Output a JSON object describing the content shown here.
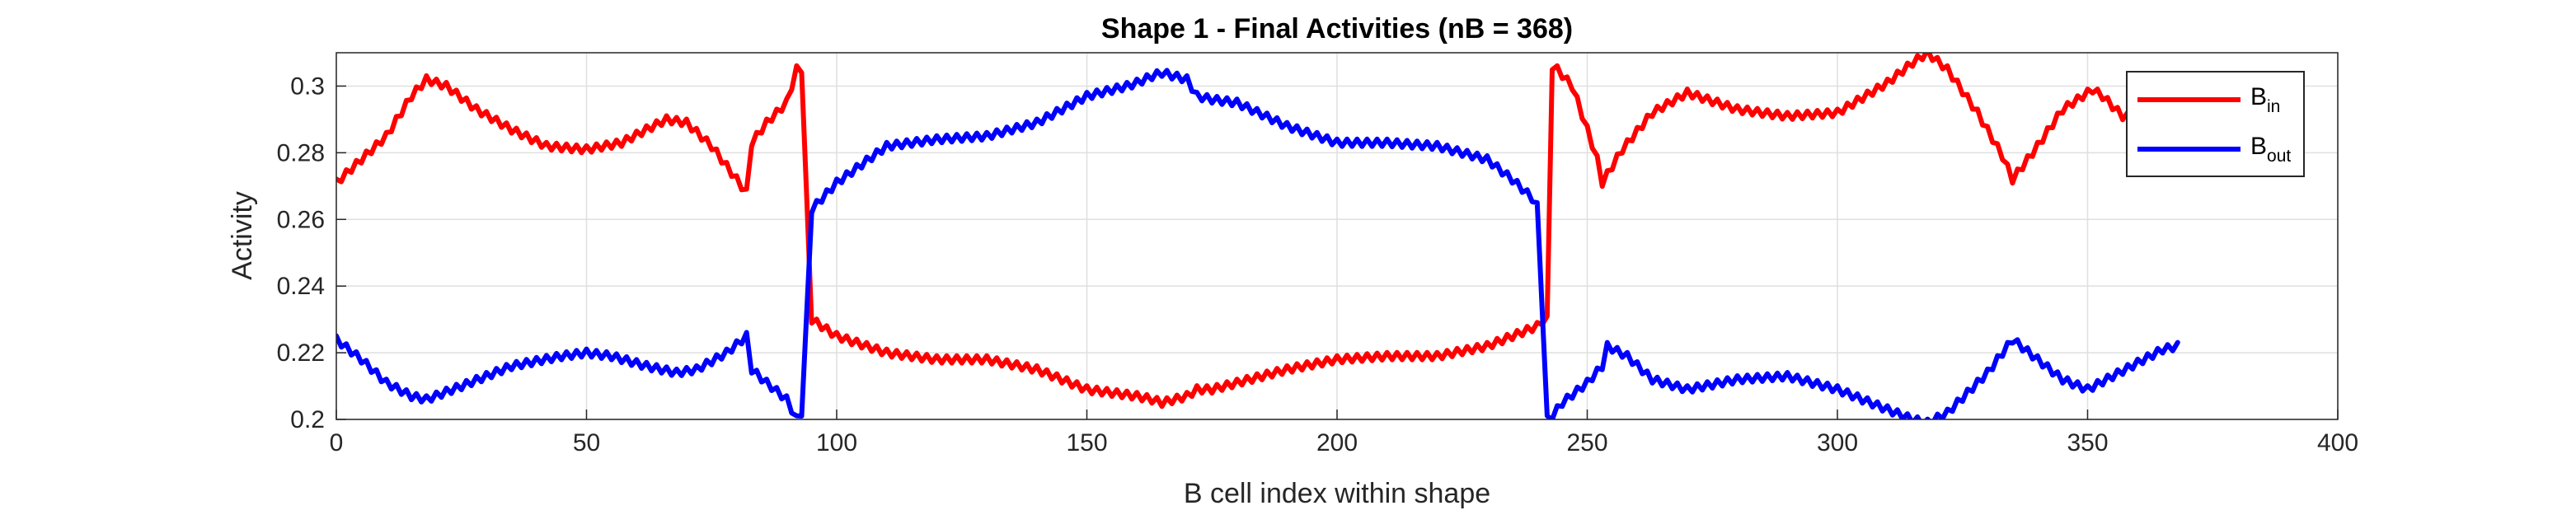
{
  "chart_data": {
    "type": "line",
    "title": "Shape 1 - Final Activities (nB = 368)",
    "xlabel": "B cell index within shape",
    "ylabel": "Activity",
    "xlim": [
      0,
      400
    ],
    "ylim": [
      0.2,
      0.31
    ],
    "xticks": [
      0,
      50,
      100,
      150,
      200,
      250,
      300,
      350,
      400
    ],
    "yticks": [
      0.2,
      0.22,
      0.24,
      0.26,
      0.28,
      0.3
    ],
    "ytick_labels": [
      "0.2",
      "0.22",
      "0.24",
      "0.26",
      "0.28",
      "0.3"
    ],
    "grid": true,
    "legend_position": "top-right",
    "series": [
      {
        "name": "B",
        "name_subscript": "in",
        "color": "#ff0000",
        "x": [
          0,
          5,
          10,
          15,
          18,
          22,
          28,
          35,
          42,
          50,
          57,
          62,
          66,
          70,
          75,
          80,
          82,
          83,
          86,
          90,
          92,
          93,
          95,
          100,
          110,
          120,
          130,
          140,
          150,
          160,
          163,
          165,
          170,
          172,
          175,
          180,
          190,
          200,
          210,
          220,
          230,
          235,
          240,
          242,
          243,
          244,
          247,
          250,
          252,
          253,
          257,
          263,
          270,
          280,
          290,
          300,
          310,
          315,
          318,
          322,
          328,
          333,
          335,
          340,
          345,
          351,
          353,
          357,
          358
        ],
        "y": [
          0.271,
          0.278,
          0.285,
          0.297,
          0.302,
          0.3,
          0.293,
          0.287,
          0.282,
          0.281,
          0.283,
          0.287,
          0.29,
          0.289,
          0.282,
          0.272,
          0.268,
          0.283,
          0.289,
          0.295,
          0.305,
          0.304,
          0.23,
          0.225,
          0.22,
          0.218,
          0.218,
          0.215,
          0.209,
          0.207,
          0.206,
          0.205,
          0.207,
          0.209,
          0.209,
          0.211,
          0.215,
          0.218,
          0.219,
          0.219,
          0.222,
          0.225,
          0.228,
          0.231,
          0.306,
          0.305,
          0.3,
          0.287,
          0.278,
          0.271,
          0.281,
          0.292,
          0.298,
          0.293,
          0.291,
          0.292,
          0.301,
          0.307,
          0.31,
          0.305,
          0.292,
          0.279,
          0.272,
          0.282,
          0.293,
          0.299,
          0.297,
          0.291,
          0.291
        ]
      },
      {
        "name": "B",
        "name_subscript": "out",
        "color": "#0000ff",
        "x": [
          0,
          5,
          10,
          15,
          18,
          25,
          35,
          45,
          50,
          55,
          62,
          68,
          72,
          78,
          82,
          83,
          86,
          90,
          92,
          93,
          95,
          100,
          110,
          120,
          130,
          140,
          150,
          158,
          160,
          163,
          165,
          170,
          172,
          175,
          180,
          190,
          200,
          210,
          220,
          230,
          235,
          240,
          242,
          243,
          245,
          250,
          253,
          254,
          258,
          263,
          270,
          280,
          290,
          300,
          310,
          315,
          318,
          322,
          330,
          335,
          340,
          345,
          350,
          355,
          360,
          365,
          368
        ],
        "y": [
          0.224,
          0.218,
          0.211,
          0.207,
          0.206,
          0.21,
          0.216,
          0.219,
          0.22,
          0.219,
          0.216,
          0.214,
          0.215,
          0.22,
          0.225,
          0.215,
          0.211,
          0.206,
          0.2,
          0.201,
          0.263,
          0.271,
          0.282,
          0.284,
          0.285,
          0.289,
          0.297,
          0.3,
          0.301,
          0.303,
          0.304,
          0.302,
          0.297,
          0.296,
          0.295,
          0.288,
          0.283,
          0.283,
          0.282,
          0.278,
          0.272,
          0.265,
          0.2,
          0.201,
          0.205,
          0.211,
          0.216,
          0.222,
          0.219,
          0.212,
          0.209,
          0.212,
          0.213,
          0.209,
          0.203,
          0.2,
          0.199,
          0.202,
          0.214,
          0.224,
          0.218,
          0.212,
          0.209,
          0.213,
          0.217,
          0.221,
          0.222
        ]
      }
    ]
  }
}
